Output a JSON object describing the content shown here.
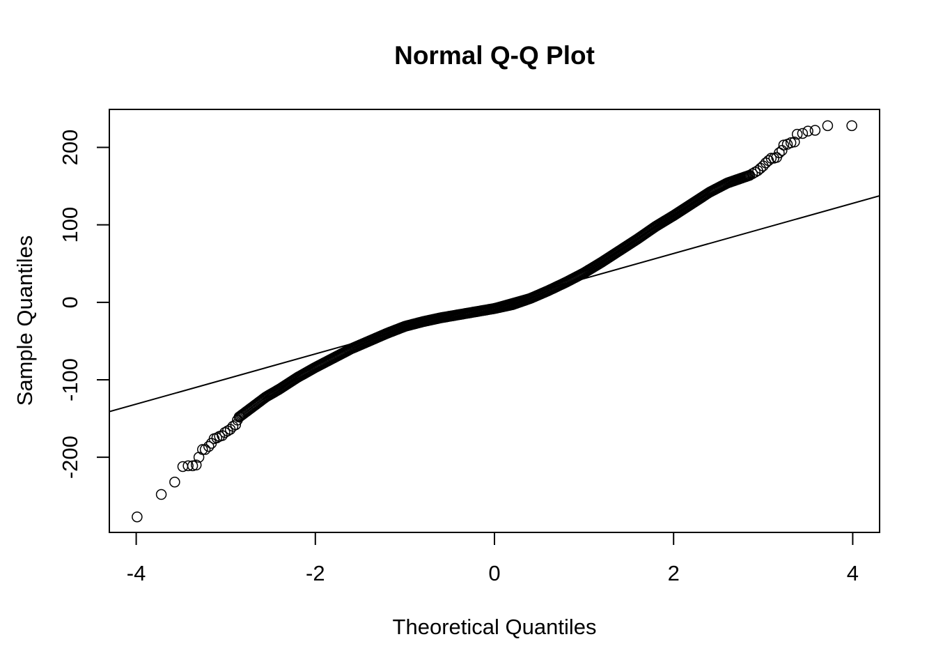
{
  "chart_data": {
    "type": "scatter",
    "title": "Normal Q-Q Plot",
    "xlabel": "Theoretical Quantiles",
    "ylabel": "Sample Quantiles",
    "xlim": [
      -4.3,
      4.3
    ],
    "ylim": [
      -297,
      249
    ],
    "xticks": [
      -4,
      -2,
      0,
      2,
      4
    ],
    "xtick_labels": [
      "-4",
      "-2",
      "0",
      "2",
      "4"
    ],
    "yticks": [
      -200,
      -100,
      0,
      100,
      200
    ],
    "ytick_labels": [
      "-200",
      "-100",
      "0",
      "100",
      "200"
    ],
    "grid": false,
    "legend": "none",
    "marker": "open-circle",
    "reference_line": {
      "slope": 32.4,
      "intercept": -1.8
    },
    "extreme_points": [
      [
        -3.99,
        -277
      ],
      [
        -3.72,
        -248
      ],
      [
        -3.57,
        -232
      ],
      [
        -3.48,
        -212
      ],
      [
        -3.42,
        -211
      ],
      [
        -3.37,
        -211
      ],
      [
        -3.33,
        -210
      ],
      [
        -3.3,
        -200
      ],
      [
        -3.26,
        -190
      ],
      [
        -3.23,
        -190
      ],
      [
        -3.19,
        -186
      ],
      [
        -3.16,
        -182
      ],
      [
        -3.13,
        -176
      ],
      [
        -3.1,
        -175
      ],
      [
        -3.07,
        -173
      ],
      [
        -3.04,
        -172
      ],
      [
        -3.01,
        -168
      ],
      [
        -2.98,
        -166
      ],
      [
        -2.95,
        -164
      ],
      [
        -2.92,
        -160
      ],
      [
        -2.89,
        -158
      ],
      [
        -2.87,
        -152
      ],
      [
        -2.85,
        -148
      ],
      [
        2.85,
        164
      ],
      [
        2.88,
        166
      ],
      [
        2.91,
        168
      ],
      [
        2.94,
        170
      ],
      [
        2.97,
        173
      ],
      [
        3.0,
        176
      ],
      [
        3.03,
        180
      ],
      [
        3.06,
        183
      ],
      [
        3.09,
        186
      ],
      [
        3.12,
        186
      ],
      [
        3.15,
        187
      ],
      [
        3.18,
        193
      ],
      [
        3.21,
        196
      ],
      [
        3.23,
        203
      ],
      [
        3.27,
        204
      ],
      [
        3.31,
        206
      ],
      [
        3.35,
        207
      ],
      [
        3.38,
        217
      ],
      [
        3.44,
        218
      ],
      [
        3.5,
        221
      ],
      [
        3.58,
        222
      ],
      [
        3.72,
        228
      ],
      [
        3.99,
        228
      ]
    ],
    "body_curve": [
      [
        -2.85,
        -148
      ],
      [
        -2.7,
        -135
      ],
      [
        -2.55,
        -122
      ],
      [
        -2.4,
        -112
      ],
      [
        -2.2,
        -97
      ],
      [
        -2.0,
        -84
      ],
      [
        -1.8,
        -72
      ],
      [
        -1.6,
        -60
      ],
      [
        -1.4,
        -50
      ],
      [
        -1.2,
        -40
      ],
      [
        -1.0,
        -31
      ],
      [
        -0.8,
        -25
      ],
      [
        -0.6,
        -20
      ],
      [
        -0.4,
        -16
      ],
      [
        -0.2,
        -12
      ],
      [
        0.0,
        -8
      ],
      [
        0.2,
        -3
      ],
      [
        0.4,
        5
      ],
      [
        0.6,
        15
      ],
      [
        0.8,
        26
      ],
      [
        1.0,
        38
      ],
      [
        1.2,
        52
      ],
      [
        1.4,
        67
      ],
      [
        1.6,
        82
      ],
      [
        1.8,
        98
      ],
      [
        2.0,
        112
      ],
      [
        2.2,
        127
      ],
      [
        2.4,
        142
      ],
      [
        2.6,
        154
      ],
      [
        2.85,
        164
      ]
    ]
  }
}
